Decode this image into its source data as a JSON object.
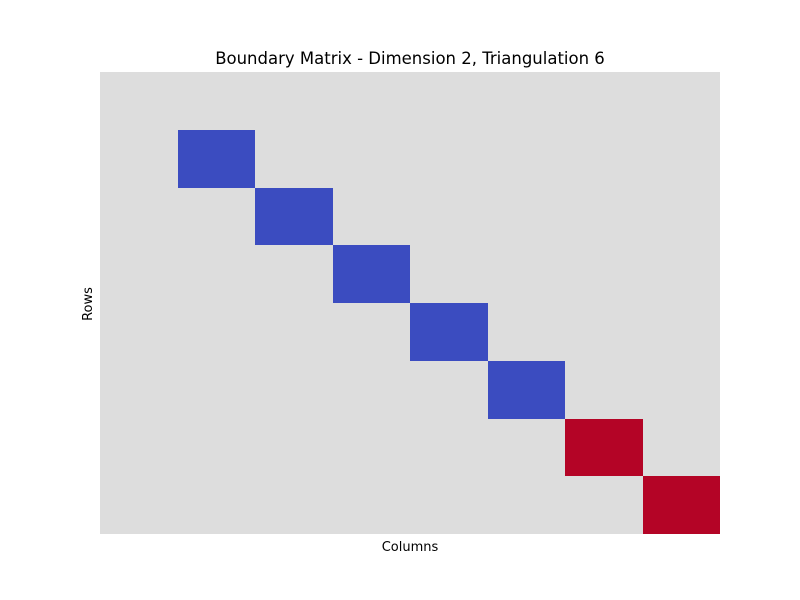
{
  "chart_data": {
    "type": "heatmap",
    "title": "Boundary Matrix - Dimension 2, Triangulation 6",
    "xlabel": "Columns",
    "ylabel": "Rows",
    "n_rows": 8,
    "n_cols": 8,
    "matrix": [
      [
        0,
        0,
        0,
        0,
        0,
        0,
        0,
        0
      ],
      [
        0,
        -1,
        0,
        0,
        0,
        0,
        0,
        0
      ],
      [
        0,
        0,
        -1,
        0,
        0,
        0,
        0,
        0
      ],
      [
        0,
        0,
        0,
        -1,
        0,
        0,
        0,
        0
      ],
      [
        0,
        0,
        0,
        0,
        -1,
        0,
        0,
        0
      ],
      [
        0,
        0,
        0,
        0,
        0,
        -1,
        0,
        0
      ],
      [
        0,
        0,
        0,
        0,
        0,
        0,
        1,
        0
      ],
      [
        0,
        0,
        0,
        0,
        0,
        0,
        0,
        1
      ]
    ],
    "value_range": [
      -1,
      1
    ],
    "colormap": "coolwarm",
    "colors": {
      "negative": "#3b4cc0",
      "zero": "#dddddd",
      "positive": "#b40426"
    },
    "grid": false,
    "ticks": false
  }
}
